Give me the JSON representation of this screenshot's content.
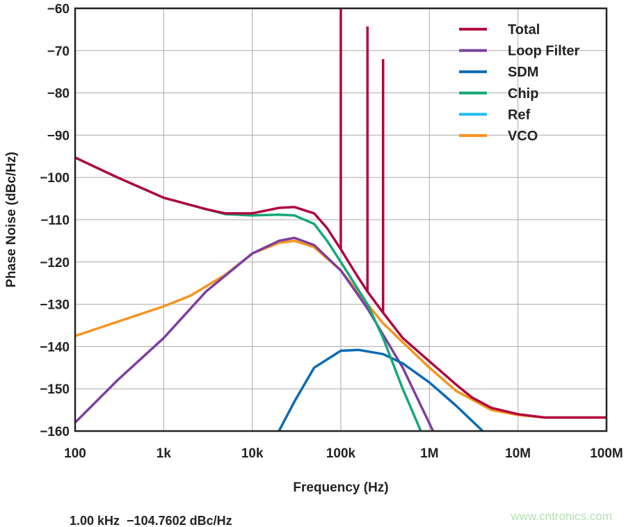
{
  "chart_data": {
    "type": "line",
    "xlabel": "Frequency (Hz)",
    "ylabel": "Phase Noise (dBc/Hz)",
    "xscale": "log",
    "xlim": [
      100,
      100000000
    ],
    "ylim": [
      -160,
      -60
    ],
    "grid": true,
    "legend_position": "top-right",
    "xticks": [
      100,
      1000,
      10000,
      100000,
      1000000,
      10000000,
      100000000
    ],
    "xtick_labels": [
      "100",
      "1k",
      "10k",
      "100k",
      "1M",
      "10M",
      "100M"
    ],
    "yticks": [
      -60,
      -70,
      -80,
      -90,
      -100,
      -110,
      -120,
      -130,
      -140,
      -150,
      -160
    ],
    "ytick_labels": [
      "−60",
      "−70",
      "−80",
      "−90",
      "−100",
      "−110",
      "−120",
      "−130",
      "−140",
      "−150",
      "−160"
    ],
    "series": [
      {
        "name": "Total",
        "color": "#b0063f",
        "x": [
          100,
          300,
          1000,
          3000,
          5000,
          10000,
          20000,
          30000,
          50000,
          70000,
          100000,
          150000,
          200000,
          300000,
          500000,
          1000000,
          2000000,
          3000000,
          5000000,
          10000000,
          20000000,
          100000000
        ],
        "y": [
          -95.3,
          -100,
          -104.8,
          -107.5,
          -108.5,
          -108.5,
          -107.2,
          -107,
          -108.5,
          -112,
          -117,
          -123,
          -127,
          -132,
          -138,
          -143.5,
          -149,
          -152,
          -154.5,
          -156,
          -156.8,
          -156.8
        ],
        "spurs": [
          {
            "x": 100000,
            "y": -60
          },
          {
            "x": 200000,
            "y": -64.3
          },
          {
            "x": 300000,
            "y": -72
          }
        ]
      },
      {
        "name": "Loop Filter",
        "color": "#7b3fa0",
        "x": [
          100,
          300,
          1000,
          3000,
          10000,
          20000,
          30000,
          50000,
          100000,
          200000,
          500000,
          1100000
        ],
        "y": [
          -158,
          -148,
          -138,
          -127,
          -118,
          -115,
          -114.3,
          -116,
          -122,
          -131,
          -145,
          -160
        ]
      },
      {
        "name": "SDM",
        "color": "#0a6ab5",
        "x": [
          20000,
          30000,
          50000,
          100000,
          160000,
          300000,
          500000,
          1000000,
          2000000,
          4000000
        ],
        "y": [
          -160,
          -153,
          -145,
          -141,
          -140.8,
          -141.8,
          -144,
          -148.5,
          -154,
          -160
        ]
      },
      {
        "name": "Chip",
        "color": "#14a879",
        "x": [
          100,
          300,
          1000,
          3000,
          5000,
          10000,
          20000,
          30000,
          50000,
          70000,
          100000,
          200000,
          300000,
          500000,
          800000
        ],
        "y": [
          -95.3,
          -100,
          -104.8,
          -107.5,
          -108.7,
          -109,
          -108.8,
          -109,
          -111,
          -115,
          -120,
          -130,
          -138,
          -150,
          -160
        ]
      },
      {
        "name": "Ref",
        "color": "#1ebcea",
        "x": [],
        "y": []
      },
      {
        "name": "VCO",
        "color": "#f7941d",
        "x": [
          100,
          1000,
          2000,
          5000,
          10000,
          20000,
          30000,
          50000,
          100000,
          200000,
          300000,
          500000,
          1000000,
          2000000,
          5000000,
          10000000,
          20000000,
          100000000
        ],
        "y": [
          -137.5,
          -130.5,
          -128,
          -123,
          -118,
          -115.5,
          -115,
          -116.5,
          -122,
          -130,
          -134.5,
          -139,
          -145,
          -150.5,
          -155,
          -156.2,
          -156.8,
          -156.8
        ]
      }
    ]
  },
  "readout": "1.00 kHz  −104.7602 dBc/Hz",
  "watermark": "www.cntronics.com"
}
